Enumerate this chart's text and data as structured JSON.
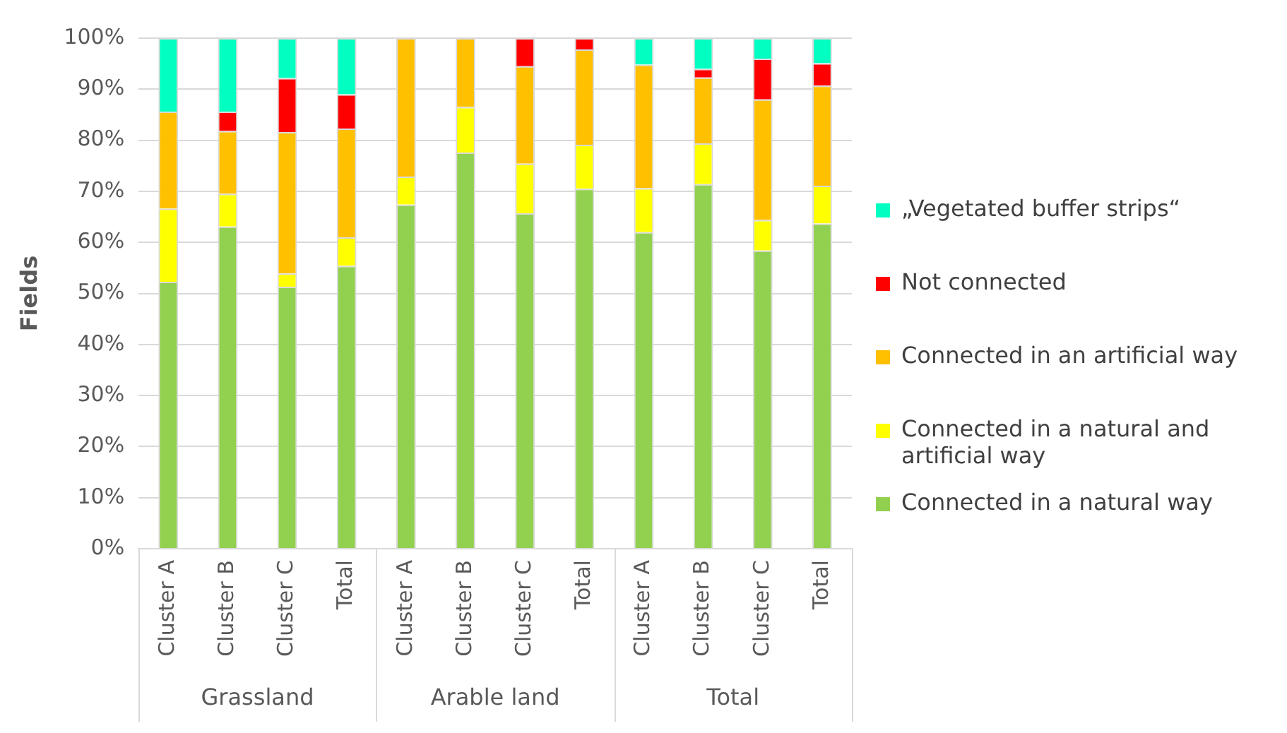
{
  "chart_data": {
    "type": "bar",
    "stacked": true,
    "ylabel": "Fields",
    "categories": [
      "Cluster A",
      "Cluster B",
      "Cluster C",
      "Total",
      "Cluster A",
      "Cluster B",
      "Cluster C",
      "Total",
      "Cluster A",
      "Cluster B",
      "Cluster C",
      "Total"
    ],
    "annotations": [
      "Grassland",
      "Arable land",
      "Total"
    ],
    "series": [
      {
        "name": "Connected in a natural way",
        "color": "#92d050",
        "values": [
          52.3,
          63.1,
          51.3,
          55.4,
          67.4,
          77.6,
          65.7,
          70.5,
          62.0,
          71.4,
          58.4,
          63.7
        ]
      },
      {
        "name": "Connected in a natural and artificial way",
        "color": "#ffff00",
        "values": [
          14.3,
          6.4,
          2.6,
          5.6,
          5.5,
          8.9,
          9.7,
          8.6,
          8.6,
          8.0,
          6.0,
          7.4
        ]
      },
      {
        "name": "Connected in an artificial way",
        "color": "#ffc000",
        "values": [
          19.0,
          12.3,
          27.7,
          21.3,
          27.1,
          13.5,
          19.1,
          18.7,
          24.2,
          12.9,
          23.6,
          19.6
        ]
      },
      {
        "name": "Not connected",
        "color": "#ff0000",
        "values": [
          0,
          3.8,
          10.6,
          6.7,
          0,
          0,
          5.5,
          2.2,
          0,
          1.7,
          8.0,
          4.4
        ]
      },
      {
        "name": "„Vegetated buffer strips“",
        "color": "#00ffc0",
        "values": [
          14.4,
          14.4,
          7.8,
          11.0,
          0,
          0,
          0,
          0,
          5.2,
          6.0,
          4.0,
          4.9
        ]
      }
    ],
    "ylim": [
      0,
      100
    ],
    "yticks": [
      {
        "value": 0,
        "label": "0%"
      },
      {
        "value": 10,
        "label": "10%"
      },
      {
        "value": 20,
        "label": "20%"
      },
      {
        "value": 30,
        "label": "30%"
      },
      {
        "value": 40,
        "label": "40%"
      },
      {
        "value": 50,
        "label": "50%"
      },
      {
        "value": 60,
        "label": "60%"
      },
      {
        "value": 70,
        "label": "70%"
      },
      {
        "value": 80,
        "label": "80%"
      },
      {
        "value": 90,
        "label": "90%"
      },
      {
        "value": 100,
        "label": "100%"
      }
    ],
    "grid": "y",
    "legend": "right"
  }
}
